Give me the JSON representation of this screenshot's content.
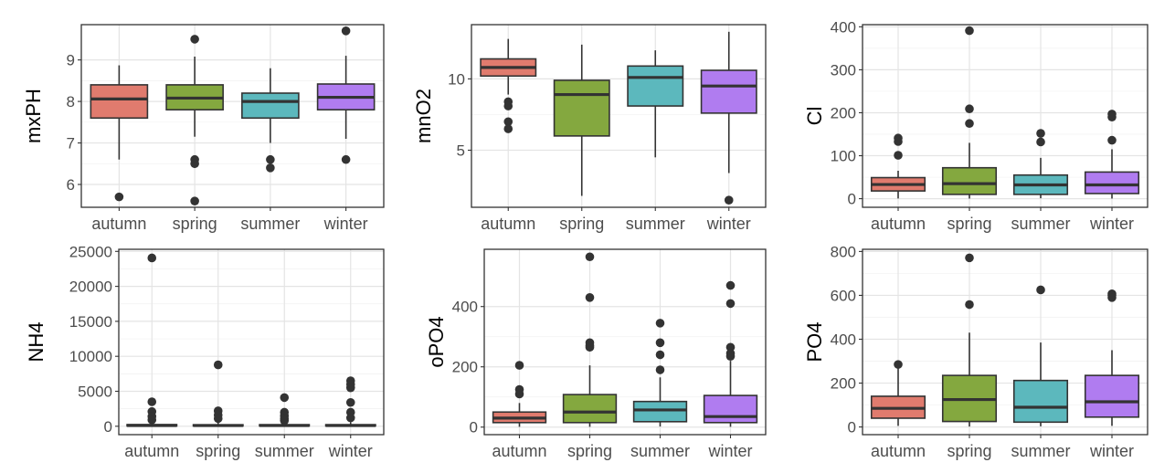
{
  "chart_data": [
    {
      "type": "box",
      "ylabel": "mxPH",
      "categories": [
        "autumn",
        "spring",
        "summer",
        "winter"
      ],
      "yticks": [
        6,
        7,
        8,
        9
      ],
      "ylim": [
        5.45,
        9.85
      ],
      "colors": [
        "#E07B6E",
        "#84A83F",
        "#5CB8BD",
        "#B07CF0"
      ],
      "boxes": [
        {
          "whisker_low": 6.6,
          "q1": 7.6,
          "median": 8.06,
          "q3": 8.4,
          "whisker_high": 8.87,
          "outliers": [
            5.7
          ]
        },
        {
          "whisker_low": 7.15,
          "q1": 7.8,
          "median": 8.08,
          "q3": 8.4,
          "whisker_high": 9.08,
          "outliers": [
            9.5,
            6.6,
            6.5,
            5.6
          ]
        },
        {
          "whisker_low": 7.0,
          "q1": 7.6,
          "median": 8.0,
          "q3": 8.2,
          "whisker_high": 8.8,
          "outliers": [
            6.6,
            6.4
          ]
        },
        {
          "whisker_low": 7.1,
          "q1": 7.8,
          "median": 8.1,
          "q3": 8.42,
          "whisker_high": 9.1,
          "outliers": [
            9.7,
            6.6
          ]
        }
      ]
    },
    {
      "type": "box",
      "ylabel": "mnO2",
      "categories": [
        "autumn",
        "spring",
        "summer",
        "winter"
      ],
      "yticks": [
        5,
        10
      ],
      "ylim": [
        1.0,
        13.8
      ],
      "colors": [
        "#E07B6E",
        "#84A83F",
        "#5CB8BD",
        "#B07CF0"
      ],
      "boxes": [
        {
          "whisker_low": 8.9,
          "q1": 10.2,
          "median": 10.8,
          "q3": 11.4,
          "whisker_high": 12.8,
          "outliers": [
            8.4,
            8.1,
            7.0,
            6.5
          ]
        },
        {
          "whisker_low": 1.8,
          "q1": 6.0,
          "median": 8.9,
          "q3": 9.9,
          "whisker_high": 12.4,
          "outliers": []
        },
        {
          "whisker_low": 4.5,
          "q1": 8.1,
          "median": 10.1,
          "q3": 10.9,
          "whisker_high": 12.0,
          "outliers": []
        },
        {
          "whisker_low": 3.4,
          "q1": 7.6,
          "median": 9.5,
          "q3": 10.6,
          "whisker_high": 13.3,
          "outliers": [
            1.5
          ]
        }
      ]
    },
    {
      "type": "box",
      "ylabel": "Cl",
      "categories": [
        "autumn",
        "spring",
        "summer",
        "winter"
      ],
      "yticks": [
        0,
        100,
        200,
        300,
        400
      ],
      "ylim": [
        -20,
        405
      ],
      "colors": [
        "#E07B6E",
        "#84A83F",
        "#5CB8BD",
        "#B07CF0"
      ],
      "boxes": [
        {
          "whisker_low": 0.5,
          "q1": 18,
          "median": 33,
          "q3": 49,
          "whisker_high": 65,
          "outliers": [
            141,
            133,
            101
          ]
        },
        {
          "whisker_low": 0.3,
          "q1": 10,
          "median": 35,
          "q3": 72,
          "whisker_high": 130,
          "outliers": [
            391,
            209,
            175
          ]
        },
        {
          "whisker_low": 1,
          "q1": 10,
          "median": 32,
          "q3": 55,
          "whisker_high": 95,
          "outliers": [
            152,
            132
          ]
        },
        {
          "whisker_low": 0.3,
          "q1": 12,
          "median": 32,
          "q3": 62,
          "whisker_high": 115,
          "outliers": [
            197,
            190,
            136
          ]
        }
      ]
    },
    {
      "type": "box",
      "ylabel": "NH4",
      "categories": [
        "autumn",
        "spring",
        "summer",
        "winter"
      ],
      "yticks": [
        0,
        5000,
        10000,
        15000,
        20000,
        25000
      ],
      "ylim": [
        -1200,
        25300
      ],
      "colors": [
        "#E07B6E",
        "#84A83F",
        "#5CB8BD",
        "#B07CF0"
      ],
      "boxes": [
        {
          "whisker_low": 5,
          "q1": 40,
          "median": 110,
          "q3": 240,
          "whisker_high": 600,
          "outliers": [
            24064,
            3500,
            2100,
            1400,
            900
          ]
        },
        {
          "whisker_low": 5,
          "q1": 40,
          "median": 100,
          "q3": 220,
          "whisker_high": 550,
          "outliers": [
            8777,
            2200,
            1600,
            1100
          ]
        },
        {
          "whisker_low": 5,
          "q1": 40,
          "median": 100,
          "q3": 230,
          "whisker_high": 550,
          "outliers": [
            4100,
            2000,
            1500,
            1100,
            800
          ]
        },
        {
          "whisker_low": 5,
          "q1": 40,
          "median": 100,
          "q3": 230,
          "whisker_high": 600,
          "outliers": [
            6500,
            6000,
            5500,
            3400,
            2000,
            1200
          ]
        }
      ]
    },
    {
      "type": "box",
      "ylabel": "oPO4",
      "categories": [
        "autumn",
        "spring",
        "summer",
        "winter"
      ],
      "yticks": [
        0,
        200,
        400
      ],
      "ylim": [
        -25,
        590
      ],
      "colors": [
        "#E07B6E",
        "#84A83F",
        "#5CB8BD",
        "#B07CF0"
      ],
      "boxes": [
        {
          "whisker_low": 1,
          "q1": 15,
          "median": 30,
          "q3": 50,
          "whisker_high": 80,
          "outliers": [
            205,
            125,
            110
          ]
        },
        {
          "whisker_low": 1,
          "q1": 15,
          "median": 50,
          "q3": 108,
          "whisker_high": 205,
          "outliers": [
            565,
            430,
            280,
            270,
            265
          ]
        },
        {
          "whisker_low": 2,
          "q1": 18,
          "median": 57,
          "q3": 85,
          "whisker_high": 165,
          "outliers": [
            345,
            280,
            240,
            190
          ]
        },
        {
          "whisker_low": 1,
          "q1": 15,
          "median": 35,
          "q3": 105,
          "whisker_high": 220,
          "outliers": [
            470,
            410,
            265,
            245,
            235
          ]
        }
      ]
    },
    {
      "type": "box",
      "ylabel": "PO4",
      "categories": [
        "autumn",
        "spring",
        "summer",
        "winter"
      ],
      "yticks": [
        0,
        200,
        400,
        600,
        800
      ],
      "ylim": [
        -35,
        810
      ],
      "colors": [
        "#E07B6E",
        "#84A83F",
        "#5CB8BD",
        "#B07CF0"
      ],
      "boxes": [
        {
          "whisker_low": 5,
          "q1": 40,
          "median": 85,
          "q3": 140,
          "whisker_high": 270,
          "outliers": [
            285
          ]
        },
        {
          "whisker_low": 2,
          "q1": 25,
          "median": 125,
          "q3": 235,
          "whisker_high": 430,
          "outliers": [
            771,
            558
          ]
        },
        {
          "whisker_low": 3,
          "q1": 22,
          "median": 90,
          "q3": 212,
          "whisker_high": 385,
          "outliers": [
            625
          ]
        },
        {
          "whisker_low": 5,
          "q1": 45,
          "median": 115,
          "q3": 235,
          "whisker_high": 350,
          "outliers": [
            607,
            600,
            590
          ]
        }
      ]
    }
  ]
}
